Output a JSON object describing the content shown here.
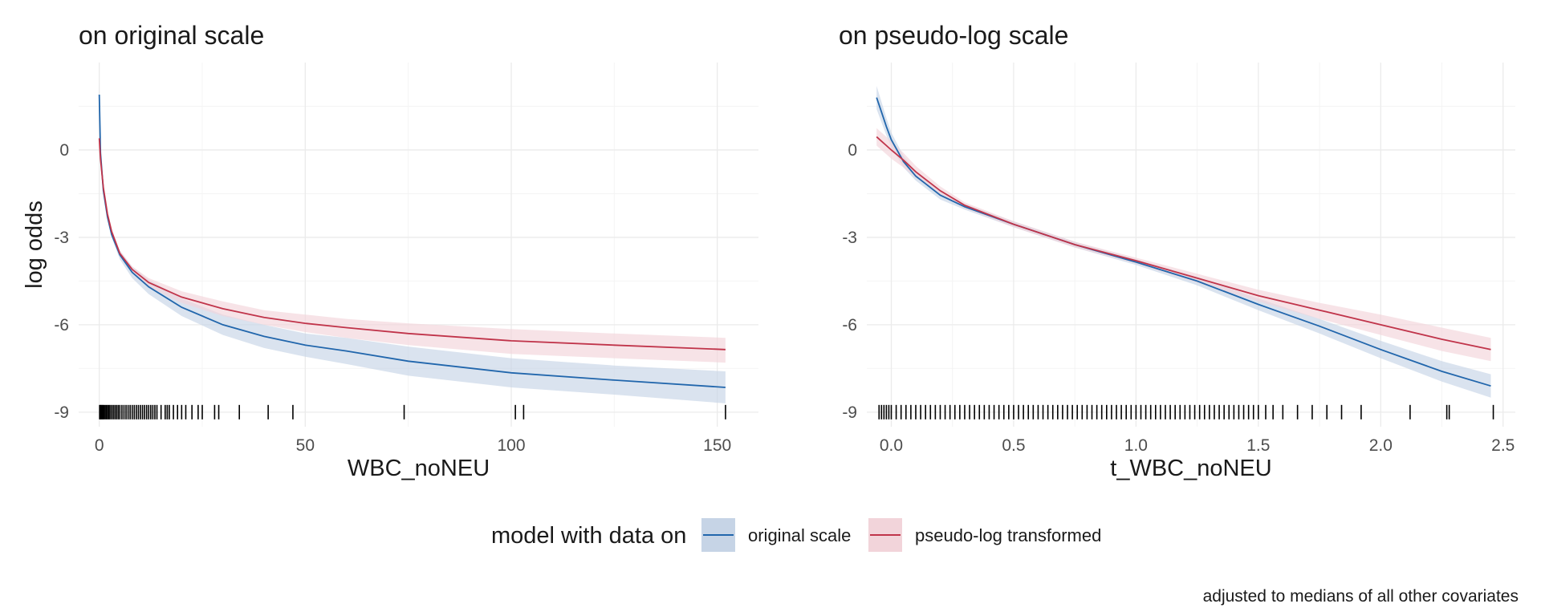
{
  "chart_data": [
    {
      "type": "line",
      "title": "on original scale",
      "xlabel": "WBC_noNEU",
      "ylabel": "log odds",
      "xlim": [
        -5,
        160
      ],
      "ylim": [
        -9.5,
        3
      ],
      "xticks": [
        0,
        50,
        100,
        150
      ],
      "xtick_labels": [
        "0",
        "50",
        "100",
        "150"
      ],
      "yticks": [
        0,
        -3,
        -6,
        -9
      ],
      "ytick_labels": [
        "0",
        "-3",
        "-6",
        "-9"
      ],
      "grid": true,
      "series": [
        {
          "name": "original scale",
          "color": "#2166ac",
          "fill": "#c6d4e6",
          "x": [
            0,
            0.3,
            1,
            2,
            3,
            5,
            8,
            12,
            20,
            30,
            40,
            50,
            60,
            75,
            100,
            125,
            152
          ],
          "y": [
            1.9,
            -0.1,
            -1.4,
            -2.3,
            -2.9,
            -3.6,
            -4.2,
            -4.7,
            -5.4,
            -6.0,
            -6.4,
            -6.7,
            -6.9,
            -7.25,
            -7.65,
            -7.9,
            -8.15
          ],
          "lower": [
            1.5,
            -0.3,
            -1.5,
            -2.4,
            -3.0,
            -3.75,
            -4.4,
            -4.95,
            -5.7,
            -6.35,
            -6.8,
            -7.1,
            -7.35,
            -7.75,
            -8.15,
            -8.4,
            -8.7
          ],
          "upper": [
            2.3,
            0.1,
            -1.3,
            -2.2,
            -2.8,
            -3.45,
            -4.0,
            -4.45,
            -5.1,
            -5.65,
            -6.0,
            -6.3,
            -6.45,
            -6.75,
            -7.15,
            -7.4,
            -7.6
          ]
        },
        {
          "name": "pseudo-log transformed",
          "color": "#c0344a",
          "fill": "#f2d4da",
          "x": [
            0,
            0.3,
            1,
            2,
            3,
            5,
            8,
            12,
            20,
            30,
            40,
            50,
            60,
            75,
            100,
            125,
            152
          ],
          "y": [
            0.4,
            -0.3,
            -1.3,
            -2.2,
            -2.8,
            -3.55,
            -4.1,
            -4.55,
            -5.05,
            -5.45,
            -5.75,
            -5.95,
            -6.1,
            -6.3,
            -6.55,
            -6.7,
            -6.85
          ],
          "lower": [
            0.3,
            -0.4,
            -1.4,
            -2.3,
            -2.9,
            -3.65,
            -4.2,
            -4.7,
            -5.25,
            -5.7,
            -6.0,
            -6.25,
            -6.45,
            -6.7,
            -7.0,
            -7.15,
            -7.3
          ],
          "upper": [
            0.5,
            -0.2,
            -1.2,
            -2.1,
            -2.7,
            -3.45,
            -4.0,
            -4.4,
            -4.85,
            -5.2,
            -5.5,
            -5.65,
            -5.8,
            -5.95,
            -6.15,
            -6.3,
            -6.45
          ]
        }
      ],
      "rug_x": [
        0.1,
        0.3,
        0.5,
        0.7,
        0.9,
        1.1,
        1.4,
        1.7,
        2,
        2.3,
        2.6,
        3,
        3.4,
        3.8,
        4.2,
        4.6,
        5,
        5.5,
        6,
        6.5,
        7,
        7.5,
        8,
        8.5,
        9,
        9.5,
        10,
        10.5,
        11,
        11.5,
        12,
        12.5,
        13,
        13.5,
        14,
        15,
        16,
        16.5,
        17,
        18,
        19,
        20,
        21,
        22.5,
        24,
        25,
        28,
        29,
        34,
        41,
        47,
        74,
        101,
        103,
        152
      ]
    },
    {
      "type": "line",
      "title": "on pseudo-log scale",
      "xlabel": "t_WBC_noNEU",
      "ylabel": "",
      "xlim": [
        -0.1,
        2.55
      ],
      "ylim": [
        -9.5,
        3
      ],
      "xticks": [
        0.0,
        0.5,
        1.0,
        1.5,
        2.0,
        2.5
      ],
      "xtick_labels": [
        "0.0",
        "0.5",
        "1.0",
        "1.5",
        "2.0",
        "2.5"
      ],
      "yticks": [
        0,
        -3,
        -6,
        -9
      ],
      "ytick_labels": [
        "0",
        "-3",
        "-6",
        "-9"
      ],
      "grid": true,
      "series": [
        {
          "name": "original scale",
          "color": "#2166ac",
          "fill": "#c6d4e6",
          "x": [
            -0.06,
            -0.04,
            -0.02,
            0.0,
            0.05,
            0.1,
            0.2,
            0.3,
            0.5,
            0.75,
            1.0,
            1.25,
            1.5,
            1.75,
            2.0,
            2.25,
            2.45
          ],
          "y": [
            1.8,
            1.3,
            0.8,
            0.35,
            -0.4,
            -0.9,
            -1.55,
            -1.95,
            -2.55,
            -3.25,
            -3.85,
            -4.5,
            -5.3,
            -6.05,
            -6.85,
            -7.6,
            -8.1
          ],
          "lower": [
            1.4,
            0.95,
            0.5,
            0.1,
            -0.6,
            -1.05,
            -1.7,
            -2.05,
            -2.65,
            -3.35,
            -3.95,
            -4.65,
            -5.5,
            -6.3,
            -7.15,
            -7.95,
            -8.5
          ],
          "upper": [
            2.2,
            1.65,
            1.1,
            0.6,
            -0.2,
            -0.75,
            -1.4,
            -1.85,
            -2.45,
            -3.15,
            -3.75,
            -4.35,
            -5.1,
            -5.8,
            -6.55,
            -7.25,
            -7.7
          ]
        },
        {
          "name": "pseudo-log transformed",
          "color": "#c0344a",
          "fill": "#f2d4da",
          "x": [
            -0.06,
            -0.04,
            -0.02,
            0.0,
            0.05,
            0.1,
            0.2,
            0.3,
            0.5,
            0.75,
            1.0,
            1.25,
            1.5,
            1.75,
            2.0,
            2.25,
            2.45
          ],
          "y": [
            0.45,
            0.3,
            0.15,
            0.0,
            -0.35,
            -0.75,
            -1.4,
            -1.9,
            -2.55,
            -3.25,
            -3.8,
            -4.4,
            -5.0,
            -5.5,
            -6.0,
            -6.5,
            -6.85
          ],
          "lower": [
            0.15,
            0.0,
            -0.15,
            -0.3,
            -0.6,
            -0.95,
            -1.55,
            -2.0,
            -2.65,
            -3.35,
            -3.9,
            -4.55,
            -5.2,
            -5.8,
            -6.35,
            -6.9,
            -7.25
          ],
          "upper": [
            0.75,
            0.6,
            0.45,
            0.3,
            -0.1,
            -0.55,
            -1.25,
            -1.8,
            -2.45,
            -3.15,
            -3.7,
            -4.25,
            -4.8,
            -5.25,
            -5.65,
            -6.1,
            -6.45
          ]
        }
      ],
      "rug_x": [
        -0.05,
        -0.04,
        -0.03,
        -0.02,
        -0.01,
        0,
        0.02,
        0.04,
        0.06,
        0.08,
        0.1,
        0.12,
        0.14,
        0.16,
        0.18,
        0.2,
        0.22,
        0.24,
        0.26,
        0.28,
        0.3,
        0.32,
        0.34,
        0.36,
        0.38,
        0.4,
        0.42,
        0.44,
        0.46,
        0.48,
        0.5,
        0.52,
        0.54,
        0.56,
        0.58,
        0.6,
        0.62,
        0.64,
        0.66,
        0.68,
        0.7,
        0.72,
        0.74,
        0.76,
        0.78,
        0.8,
        0.82,
        0.84,
        0.86,
        0.88,
        0.9,
        0.92,
        0.94,
        0.96,
        0.98,
        1.0,
        1.02,
        1.04,
        1.06,
        1.08,
        1.1,
        1.12,
        1.14,
        1.16,
        1.18,
        1.2,
        1.22,
        1.24,
        1.26,
        1.28,
        1.3,
        1.32,
        1.34,
        1.36,
        1.38,
        1.4,
        1.42,
        1.44,
        1.46,
        1.48,
        1.5,
        1.53,
        1.56,
        1.6,
        1.66,
        1.72,
        1.78,
        1.84,
        1.92,
        2.12,
        2.27,
        2.28,
        2.46
      ]
    }
  ],
  "legend": {
    "title": "model with data on",
    "items": [
      {
        "label": "original scale",
        "color": "#2166ac",
        "fill": "#c6d4e6"
      },
      {
        "label": "pseudo-log transformed",
        "color": "#c0344a",
        "fill": "#f2d4da"
      }
    ],
    "placement": "bottom"
  },
  "caption": "adjusted to medians of all other covariates"
}
